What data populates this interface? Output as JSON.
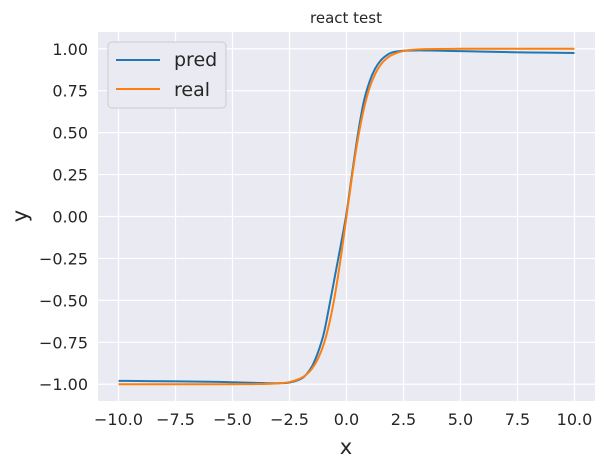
{
  "chart_data": {
    "type": "line",
    "title": "react test",
    "xlabel": "x",
    "ylabel": "y",
    "xlim": [
      -10.9,
      10.9
    ],
    "ylim": [
      -1.1,
      1.1
    ],
    "xticks": [
      -10,
      -7.5,
      -5,
      -2.5,
      0,
      2.5,
      5,
      7.5,
      10
    ],
    "xtick_labels": [
      "−10.0",
      "−7.5",
      "−5.0",
      "−2.5",
      "0.0",
      "2.5",
      "5.0",
      "7.5",
      "10.0"
    ],
    "yticks": [
      -1,
      -0.75,
      -0.5,
      -0.25,
      0,
      0.25,
      0.5,
      0.75,
      1
    ],
    "ytick_labels": [
      "−1.00",
      "−0.75",
      "−0.50",
      "−0.25",
      "0.00",
      "0.25",
      "0.50",
      "0.75",
      "1.00"
    ],
    "grid": true,
    "legend_position": "top-left",
    "background_color": "#eaeaf2",
    "grid_color": "#ffffff",
    "series": [
      {
        "name": "pred",
        "color": "#1f77b4",
        "x": [
          -10,
          -8,
          -6,
          -5,
          -4,
          -3.5,
          -3,
          -2.5,
          -2,
          -1.75,
          -1.5,
          -1.25,
          -1,
          -0.75,
          -0.5,
          -0.25,
          0,
          0.25,
          0.5,
          0.75,
          1,
          1.25,
          1.5,
          1.75,
          2,
          2.5,
          3,
          3.5,
          4,
          5,
          6,
          8,
          10
        ],
        "y": [
          -0.98,
          -0.982,
          -0.985,
          -0.988,
          -0.992,
          -0.994,
          -0.994,
          -0.99,
          -0.968,
          -0.94,
          -0.89,
          -0.81,
          -0.7,
          -0.53,
          -0.35,
          -0.17,
          0.02,
          0.26,
          0.49,
          0.68,
          0.8,
          0.88,
          0.93,
          0.96,
          0.978,
          0.988,
          0.99,
          0.99,
          0.989,
          0.986,
          0.983,
          0.978,
          0.975
        ]
      },
      {
        "name": "real",
        "color": "#ff7f0e",
        "x": [
          -10,
          -8,
          -6,
          -5,
          -4,
          -3.5,
          -3,
          -2.5,
          -2,
          -1.75,
          -1.5,
          -1.25,
          -1,
          -0.75,
          -0.5,
          -0.25,
          0,
          0.25,
          0.5,
          0.75,
          1,
          1.25,
          1.5,
          1.75,
          2,
          2.5,
          3,
          3.5,
          4,
          5,
          6,
          8,
          10
        ],
        "y": [
          -1,
          -1,
          -1,
          -1,
          -0.999,
          -0.998,
          -0.995,
          -0.987,
          -0.964,
          -0.941,
          -0.905,
          -0.848,
          -0.762,
          -0.635,
          -0.462,
          -0.245,
          0,
          0.245,
          0.462,
          0.635,
          0.762,
          0.848,
          0.905,
          0.941,
          0.964,
          0.987,
          0.995,
          0.998,
          0.999,
          1,
          1,
          1,
          1
        ]
      }
    ]
  }
}
